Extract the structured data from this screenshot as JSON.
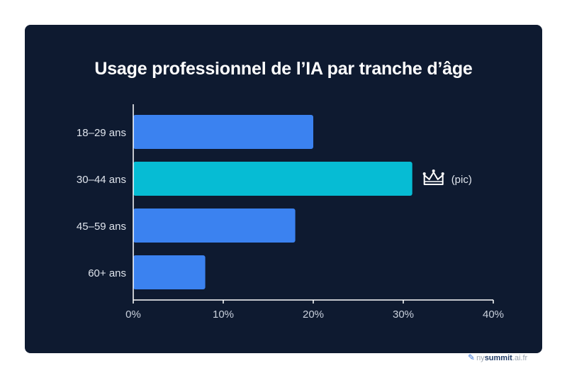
{
  "chart_data": {
    "type": "bar",
    "orientation": "horizontal",
    "title": "Usage professionnel de l’IA par tranche d’âge",
    "categories": [
      "18–29 ans",
      "30–44 ans",
      "45–59 ans",
      "60+ ans"
    ],
    "values": [
      20,
      31,
      18,
      8
    ],
    "xlim": [
      0,
      40
    ],
    "x_ticks": [
      0,
      10,
      20,
      30,
      40
    ],
    "x_tick_labels": [
      "0%",
      "10%",
      "20%",
      "30%",
      "40%"
    ],
    "highlight": {
      "category": "30–44 ans",
      "annotation": "(pic)",
      "icon": "crown-icon"
    },
    "colors": {
      "bar": "#3b82f0",
      "highlight_bar": "#06bcd4",
      "background": "#0e1a30",
      "text": "#ffffff",
      "axis": "#ffffff"
    },
    "grid": false
  },
  "watermark": {
    "prefix": "ny",
    "brand": "summit",
    "suffix": ".ai.fr"
  }
}
